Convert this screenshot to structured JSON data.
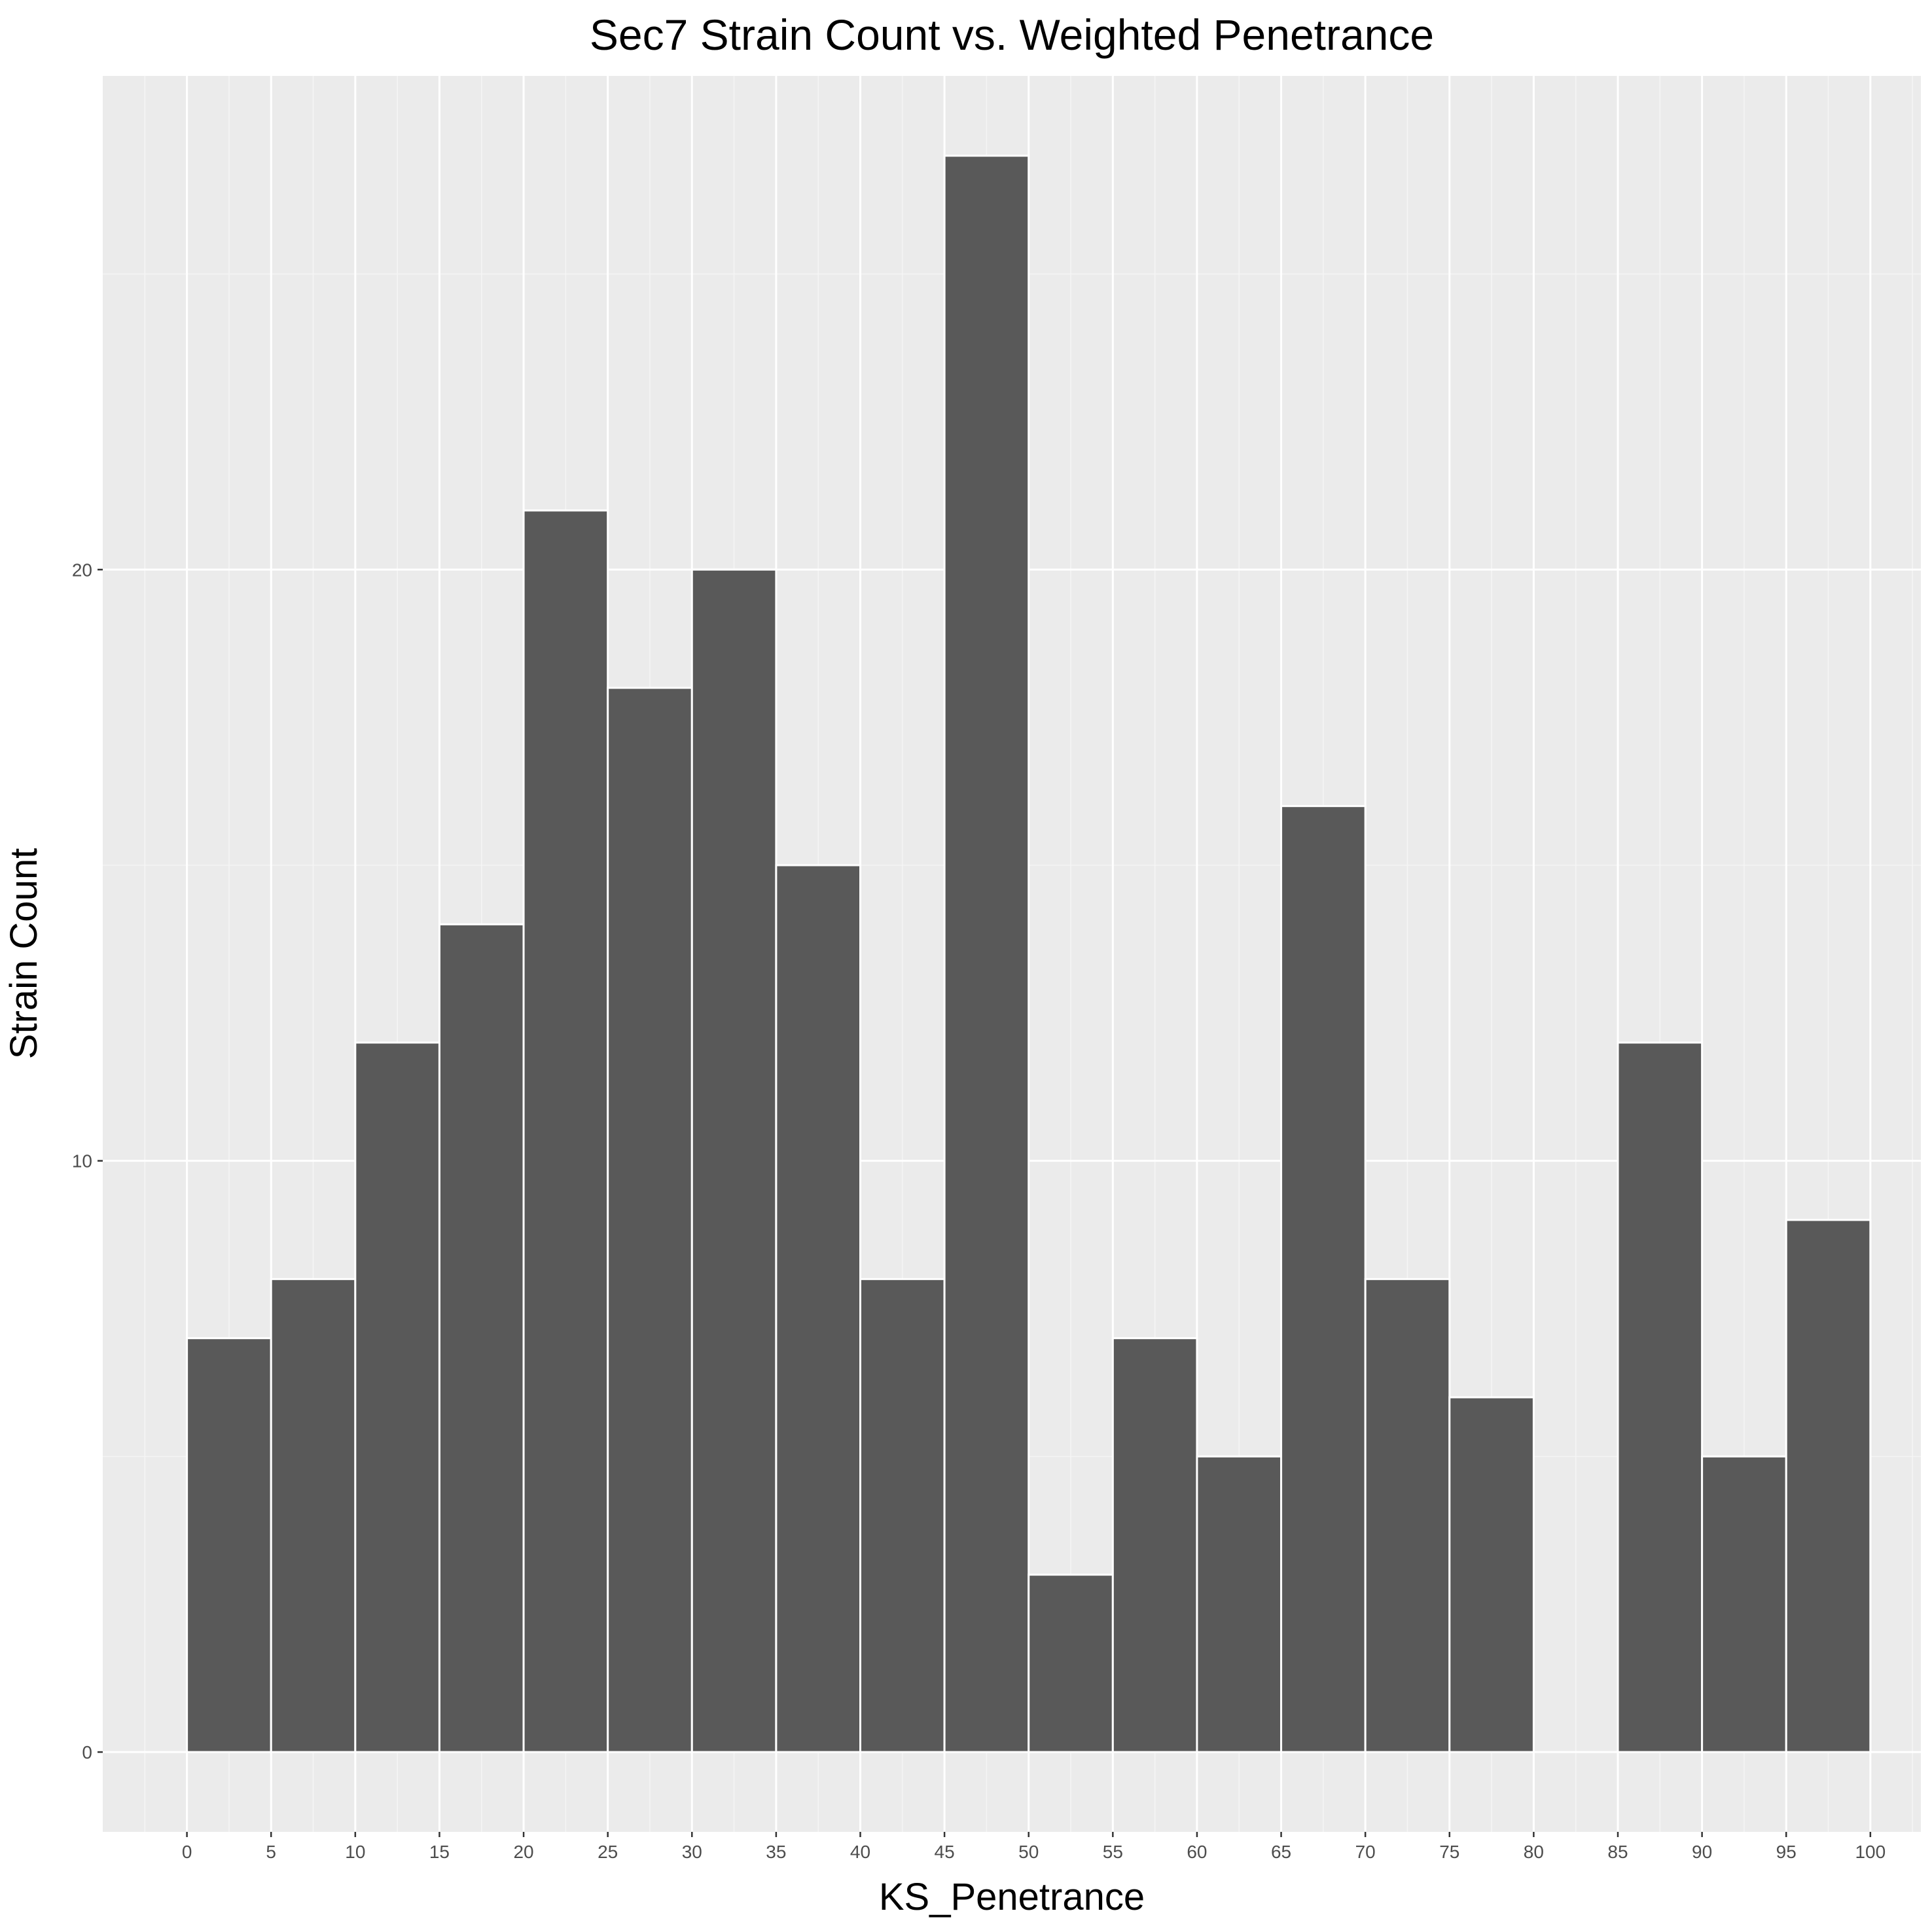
{
  "chart_data": {
    "type": "bar",
    "title": "Sec7 Strain Count vs. Weighted Penetrance",
    "xlabel": "KS_Penetrance",
    "ylabel": "Strain Count",
    "bins": [
      {
        "start": 0,
        "end": 5,
        "count": 7
      },
      {
        "start": 5,
        "end": 10,
        "count": 8
      },
      {
        "start": 10,
        "end": 15,
        "count": 12
      },
      {
        "start": 15,
        "end": 20,
        "count": 14
      },
      {
        "start": 20,
        "end": 25,
        "count": 21
      },
      {
        "start": 25,
        "end": 30,
        "count": 18
      },
      {
        "start": 30,
        "end": 35,
        "count": 20
      },
      {
        "start": 35,
        "end": 40,
        "count": 15
      },
      {
        "start": 40,
        "end": 45,
        "count": 8
      },
      {
        "start": 45,
        "end": 50,
        "count": 27
      },
      {
        "start": 50,
        "end": 55,
        "count": 3
      },
      {
        "start": 55,
        "end": 60,
        "count": 7
      },
      {
        "start": 60,
        "end": 65,
        "count": 5
      },
      {
        "start": 65,
        "end": 70,
        "count": 16
      },
      {
        "start": 70,
        "end": 75,
        "count": 8
      },
      {
        "start": 75,
        "end": 80,
        "count": 6
      },
      {
        "start": 80,
        "end": 85,
        "count": 0
      },
      {
        "start": 85,
        "end": 90,
        "count": 12
      },
      {
        "start": 90,
        "end": 95,
        "count": 5
      },
      {
        "start": 95,
        "end": 100,
        "count": 9
      }
    ],
    "xticks": [
      0,
      5,
      10,
      15,
      20,
      25,
      30,
      35,
      40,
      45,
      50,
      55,
      60,
      65,
      70,
      75,
      80,
      85,
      90,
      95,
      100
    ],
    "yticks": [
      0,
      10,
      20
    ],
    "xlim": [
      -5,
      103
    ],
    "ylim": [
      -1.35,
      28.35
    ],
    "grid": true,
    "colors": {
      "bar_fill": "#595959",
      "bar_stroke": "#ffffff",
      "panel_bg": "#ebebeb",
      "grid_major": "#ffffff",
      "grid_minor": "#f5f5f5",
      "tick_mark": "#333333"
    }
  }
}
